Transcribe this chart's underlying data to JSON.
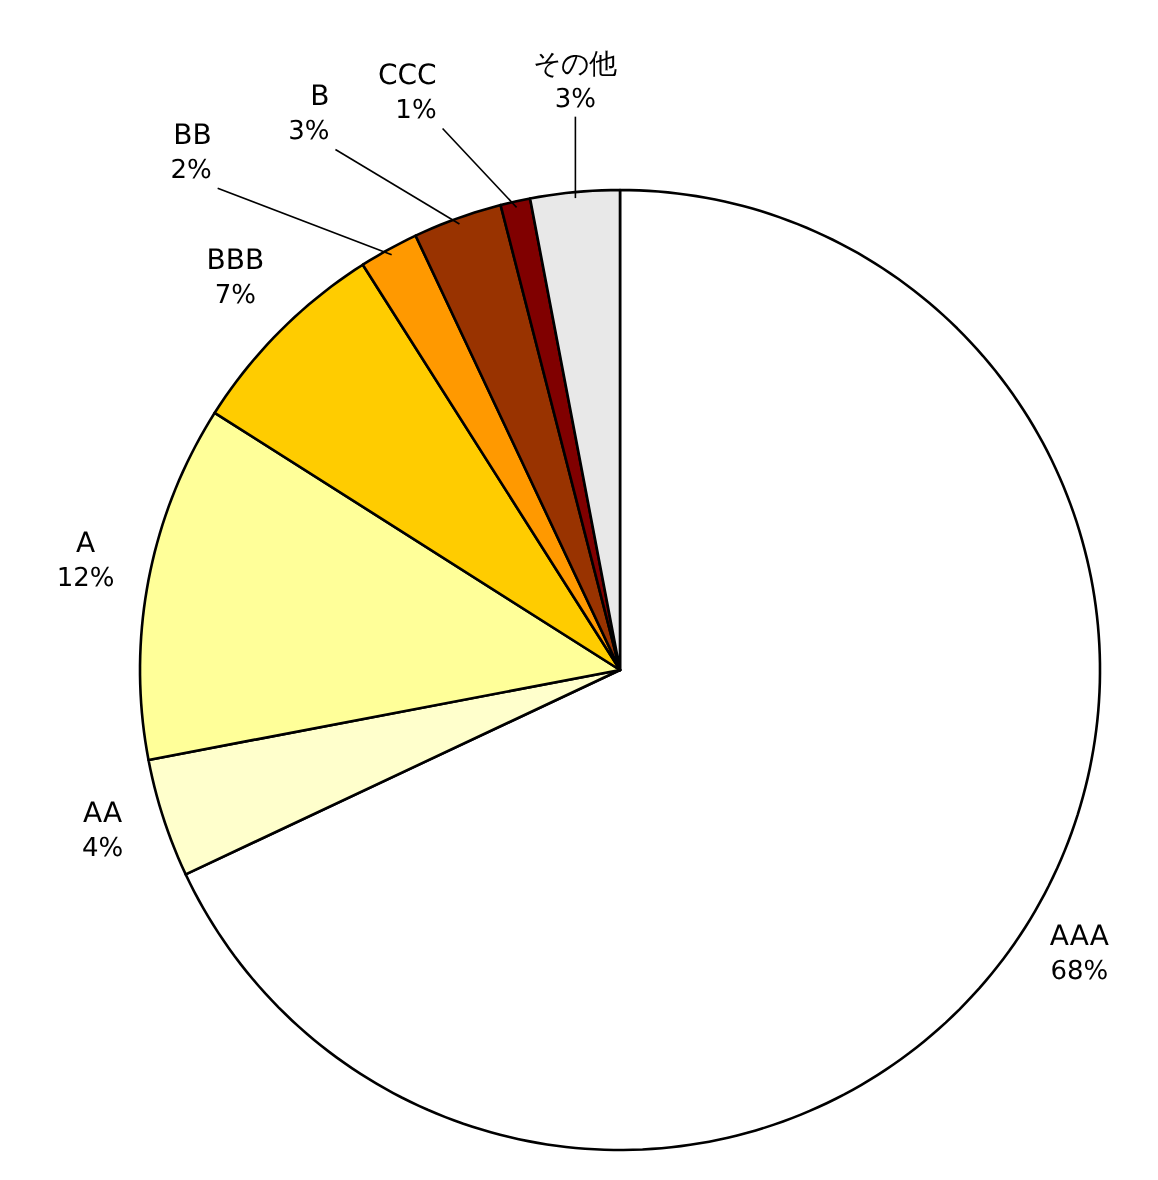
{
  "chart_data": {
    "type": "pie",
    "categories": [
      "AAA",
      "AA",
      "A",
      "BBB",
      "BB",
      "B",
      "CCC",
      "その他"
    ],
    "values": [
      68,
      4,
      12,
      7,
      2,
      3,
      1,
      3
    ],
    "colors": [
      "#ffffff",
      "#ffffcc",
      "#ffff99",
      "#ffcc00",
      "#ff9900",
      "#993300",
      "#800000",
      "#e8e8e8"
    ],
    "value_labels": [
      "68%",
      "4%",
      "12%",
      "7%",
      "2%",
      "3%",
      "1%",
      "3%"
    ]
  }
}
